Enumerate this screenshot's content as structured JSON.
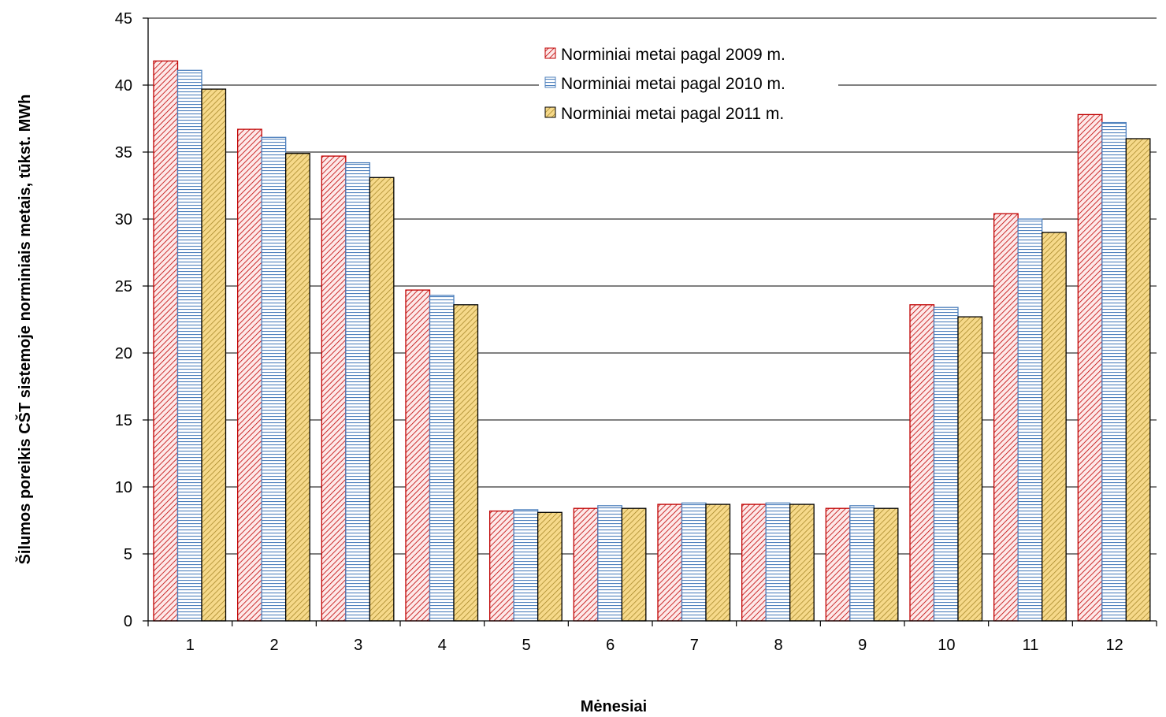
{
  "chart_data": {
    "type": "bar",
    "title": "",
    "xlabel": "Mėnesiai",
    "ylabel": "Šilumos poreikis CŠT sistemoje norminiais metais, tūkst. MWh",
    "categories": [
      "1",
      "2",
      "3",
      "4",
      "5",
      "6",
      "7",
      "8",
      "9",
      "10",
      "11",
      "12"
    ],
    "ylim": [
      0,
      45
    ],
    "yticks": [
      "0",
      "5",
      "10",
      "15",
      "20",
      "25",
      "30",
      "35",
      "40",
      "45"
    ],
    "grid": true,
    "legend_position": "top-center",
    "series": [
      {
        "name": "Norminiai metai pagal 2009 m.",
        "values": [
          41.8,
          36.7,
          34.7,
          24.7,
          8.2,
          8.4,
          8.7,
          8.7,
          8.4,
          23.6,
          30.4,
          37.8
        ],
        "color": "#c00000",
        "fill": "#fde9e9",
        "pattern": "diagonal"
      },
      {
        "name": "Norminiai metai pagal 2010 m.",
        "values": [
          41.1,
          36.1,
          34.2,
          24.3,
          8.3,
          8.6,
          8.8,
          8.8,
          8.6,
          23.4,
          30.0,
          37.2
        ],
        "color": "#4f81bd",
        "fill": "#ffffff",
        "pattern": "horizontal"
      },
      {
        "name": "Norminiai metai pagal 2011 m.",
        "values": [
          39.7,
          34.9,
          33.1,
          23.6,
          8.1,
          8.4,
          8.7,
          8.7,
          8.4,
          22.7,
          29.0,
          36.0
        ],
        "color": "#000000",
        "fill": "#f6d98a",
        "pattern": "diagonal-bold"
      }
    ]
  }
}
